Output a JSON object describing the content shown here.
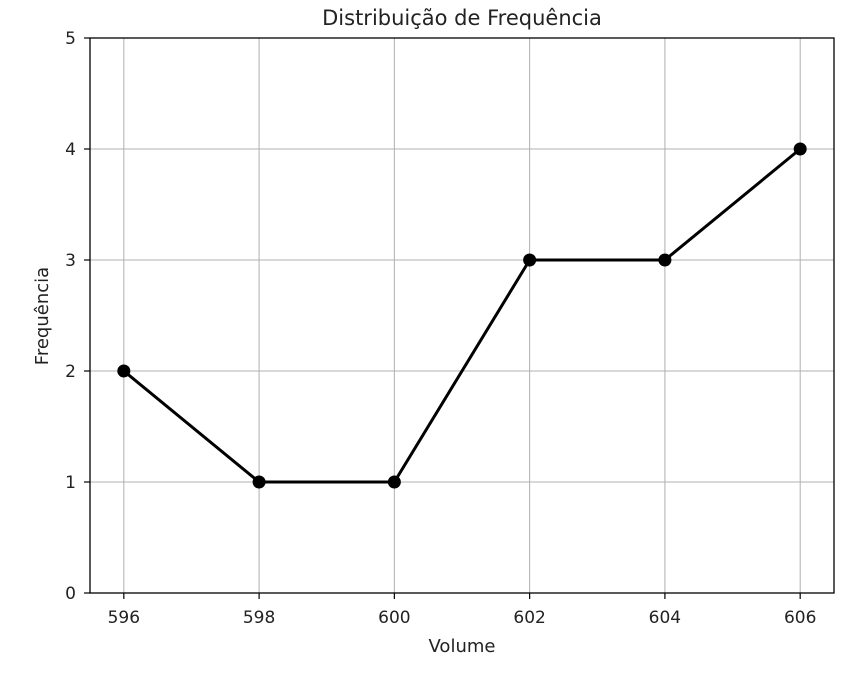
{
  "chart_data": {
    "type": "line",
    "title": "Distribuição de Frequência",
    "xlabel": "Volume",
    "ylabel": "Frequência",
    "x": [
      596,
      598,
      600,
      602,
      604,
      606
    ],
    "series": [
      {
        "values": [
          2,
          1,
          1,
          3,
          3,
          4
        ],
        "color": "#000000",
        "marker": "circle"
      }
    ],
    "xlim": [
      595.5,
      606.5
    ],
    "ylim": [
      0,
      5
    ],
    "x_ticks": [
      596,
      598,
      600,
      602,
      604,
      606
    ],
    "y_ticks": [
      0,
      1,
      2,
      3,
      4,
      5
    ],
    "grid": true,
    "legend": "none"
  },
  "colors": {
    "line": "#000000",
    "grid": "#b0b0b0",
    "axes": "#000000",
    "background": "#ffffff"
  }
}
